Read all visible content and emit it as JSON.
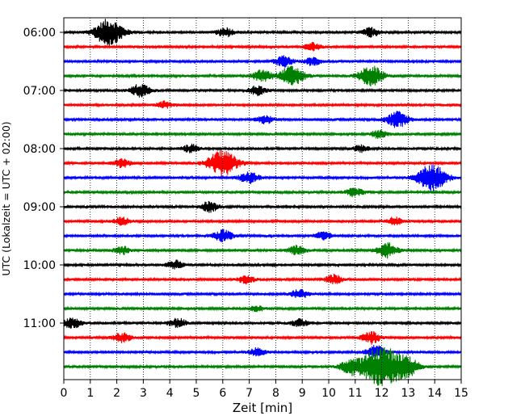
{
  "chart_data": {
    "type": "line",
    "chart_kind": "helicorder (seismogram drum plot)",
    "xlabel": "Zeit  [min]",
    "ylabel": "UTC (Lokalzeit = UTC + 02:00)",
    "xlim": [
      0,
      15
    ],
    "x_ticks": [
      0,
      1,
      2,
      3,
      4,
      5,
      6,
      7,
      8,
      9,
      10,
      11,
      12,
      13,
      14,
      15
    ],
    "x_tick_labels": [
      "0",
      "1",
      "2",
      "3",
      "4",
      "5",
      "6",
      "7",
      "8",
      "9",
      "10",
      "11",
      "12",
      "13",
      "14",
      "15"
    ],
    "y_tick_labels": [
      "06:00",
      "07:00",
      "08:00",
      "09:00",
      "10:00",
      "11:00"
    ],
    "y_tick_rows": [
      0,
      4,
      8,
      12,
      16,
      20
    ],
    "x_grid": "dotted vertical lines at every minute",
    "colors": [
      "#000000",
      "#ff0000",
      "#0000ff",
      "#008000"
    ],
    "trace_count": 24,
    "traces": [
      {
        "start": "06:00",
        "color": "#000000",
        "events": [
          {
            "t": 1.7,
            "amp": 1.0
          },
          {
            "t": 6.1,
            "amp": 0.35
          },
          {
            "t": 11.6,
            "amp": 0.35
          }
        ]
      },
      {
        "start": "06:15",
        "color": "#ff0000",
        "events": [
          {
            "t": 9.4,
            "amp": 0.3
          }
        ]
      },
      {
        "start": "06:30",
        "color": "#0000ff",
        "events": [
          {
            "t": 8.3,
            "amp": 0.4
          },
          {
            "t": 9.4,
            "amp": 0.3
          }
        ]
      },
      {
        "start": "06:45",
        "color": "#008000",
        "events": [
          {
            "t": 7.5,
            "amp": 0.45
          },
          {
            "t": 8.6,
            "amp": 0.75
          },
          {
            "t": 11.6,
            "amp": 0.75
          }
        ]
      },
      {
        "start": "07:00",
        "color": "#000000",
        "events": [
          {
            "t": 2.9,
            "amp": 0.5
          },
          {
            "t": 7.3,
            "amp": 0.35
          }
        ]
      },
      {
        "start": "07:15",
        "color": "#ff0000",
        "events": [
          {
            "t": 3.8,
            "amp": 0.25
          }
        ]
      },
      {
        "start": "07:30",
        "color": "#0000ff",
        "events": [
          {
            "t": 7.6,
            "amp": 0.3
          },
          {
            "t": 12.6,
            "amp": 0.6
          }
        ]
      },
      {
        "start": "07:45",
        "color": "#008000",
        "events": [
          {
            "t": 11.9,
            "amp": 0.3
          }
        ]
      },
      {
        "start": "08:00",
        "color": "#000000",
        "events": [
          {
            "t": 4.8,
            "amp": 0.3
          },
          {
            "t": 11.2,
            "amp": 0.25
          }
        ]
      },
      {
        "start": "08:15",
        "color": "#ff0000",
        "events": [
          {
            "t": 6.0,
            "amp": 1.0
          },
          {
            "t": 2.2,
            "amp": 0.3
          }
        ]
      },
      {
        "start": "08:30",
        "color": "#0000ff",
        "events": [
          {
            "t": 7.0,
            "amp": 0.45
          },
          {
            "t": 13.9,
            "amp": 1.0
          }
        ]
      },
      {
        "start": "08:45",
        "color": "#008000",
        "events": [
          {
            "t": 11.0,
            "amp": 0.35
          }
        ]
      },
      {
        "start": "09:00",
        "color": "#000000",
        "events": [
          {
            "t": 5.5,
            "amp": 0.4
          }
        ]
      },
      {
        "start": "09:15",
        "color": "#ff0000",
        "events": [
          {
            "t": 2.2,
            "amp": 0.3
          },
          {
            "t": 12.5,
            "amp": 0.3
          }
        ]
      },
      {
        "start": "09:30",
        "color": "#0000ff",
        "events": [
          {
            "t": 6.0,
            "amp": 0.45
          },
          {
            "t": 9.8,
            "amp": 0.3
          }
        ]
      },
      {
        "start": "09:45",
        "color": "#008000",
        "events": [
          {
            "t": 2.2,
            "amp": 0.3
          },
          {
            "t": 8.8,
            "amp": 0.35
          },
          {
            "t": 12.2,
            "amp": 0.55
          }
        ]
      },
      {
        "start": "10:00",
        "color": "#000000",
        "events": [
          {
            "t": 4.2,
            "amp": 0.35
          }
        ]
      },
      {
        "start": "10:15",
        "color": "#ff0000",
        "events": [
          {
            "t": 6.9,
            "amp": 0.3
          },
          {
            "t": 10.2,
            "amp": 0.35
          }
        ]
      },
      {
        "start": "10:30",
        "color": "#0000ff",
        "events": [
          {
            "t": 8.9,
            "amp": 0.35
          }
        ]
      },
      {
        "start": "10:45",
        "color": "#008000",
        "events": [
          {
            "t": 7.3,
            "amp": 0.2
          }
        ]
      },
      {
        "start": "11:00",
        "color": "#000000",
        "events": [
          {
            "t": 0.3,
            "amp": 0.4
          },
          {
            "t": 4.3,
            "amp": 0.35
          },
          {
            "t": 8.9,
            "amp": 0.3
          }
        ]
      },
      {
        "start": "11:15",
        "color": "#ff0000",
        "events": [
          {
            "t": 2.2,
            "amp": 0.35
          },
          {
            "t": 11.6,
            "amp": 0.45
          }
        ]
      },
      {
        "start": "11:30",
        "color": "#0000ff",
        "events": [
          {
            "t": 7.3,
            "amp": 0.3
          },
          {
            "t": 11.8,
            "amp": 0.5
          }
        ]
      },
      {
        "start": "11:45",
        "color": "#008000",
        "events": [
          {
            "t": 12.0,
            "amp": 1.6
          },
          {
            "t": 10.8,
            "amp": 0.5
          },
          {
            "t": 13.0,
            "amp": 0.6
          }
        ]
      }
    ]
  }
}
